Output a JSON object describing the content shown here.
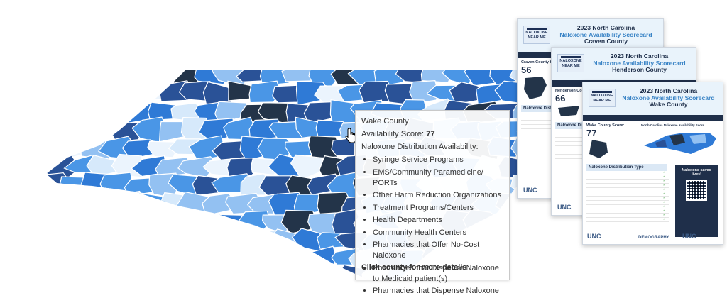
{
  "tooltip": {
    "county": "Wake County",
    "score_label": "Availability Score: ",
    "score_value": "77",
    "distribution_label": "Naloxone Distribution Availability:",
    "items": [
      "Syringe Service Programs",
      "EMS/Community Paramedicine/ PORTs",
      "Other Harm Reduction Organizations",
      "Treatment Programs/Centers",
      "Health Departments",
      "Community Health Centers",
      "Pharmacies that Offer No-Cost Naloxone",
      "Pharmacies that Dispense Naloxone to Medicaid patient(s)",
      "Pharmacies that Dispense Naloxone"
    ],
    "footer": "Click county for more details"
  },
  "scorecards": [
    {
      "logo": "NALOXONE NEAR ME",
      "title1": "2023 North Carolina",
      "title2": "Naloxone Availability Scorecard",
      "county": "Craven County",
      "score_label": "Craven County Scor",
      "score": "56",
      "section": "Naloxone Distrib"
    },
    {
      "logo": "NALOXONE NEAR ME",
      "title1": "2023 North Carolina",
      "title2": "Naloxone Availability Scorecard",
      "county": "Henderson County",
      "score_label": "Henderson County S",
      "score": "66",
      "section": "Naloxone Dist"
    },
    {
      "logo": "NALOXONE NEAR ME",
      "title1": "2023 North Carolina",
      "title2": "Naloxone Availability Scorecard",
      "county": "Wake County",
      "score_label": "Wake County Score:",
      "score": "77",
      "map_label": "North Carolina Naloxone Availability Score",
      "section": "Naloxone Distribution Type",
      "side_title": "Naloxone saves lives!",
      "footer_left": "UNC",
      "footer_mid": "DEMOGRAPHY",
      "footer_right": "UNC"
    }
  ],
  "colors": {
    "darkest": "#233449",
    "dark": "#2a5297",
    "mid": "#2f7ad6",
    "medium": "#4a96e6",
    "light": "#93c1f2",
    "pale": "#d6e9fb",
    "palest": "#ebf4fd"
  }
}
